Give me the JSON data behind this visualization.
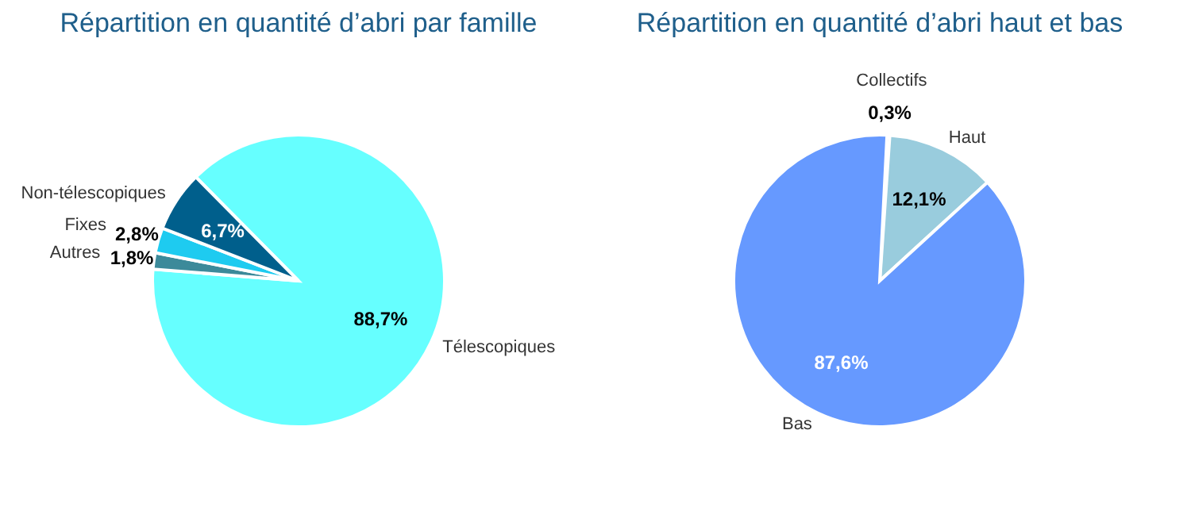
{
  "chart_data": [
    {
      "type": "pie",
      "title": "Répartition en quantité d’abri par famille",
      "categories": [
        "Télescopiques",
        "Autres",
        "Fixes",
        "Non-télescopiques"
      ],
      "values": [
        88.7,
        1.8,
        2.8,
        6.7
      ],
      "colors": [
        "#66ffff",
        "#3c8a9a",
        "#1ecbf0",
        "#005f8c"
      ],
      "value_labels": [
        "88,7%",
        "1,8%",
        "2,8%",
        "6,7%"
      ]
    },
    {
      "type": "pie",
      "title": "Répartition en quantité d’abri haut et bas",
      "categories": [
        "Collectifs",
        "Haut",
        "Bas"
      ],
      "values": [
        0.3,
        12.1,
        87.6
      ],
      "colors": [
        "#1a2f8c",
        "#99ccdd",
        "#6699ff"
      ],
      "value_labels": [
        "0,3%",
        "12,1%",
        "87,6%"
      ]
    }
  ]
}
